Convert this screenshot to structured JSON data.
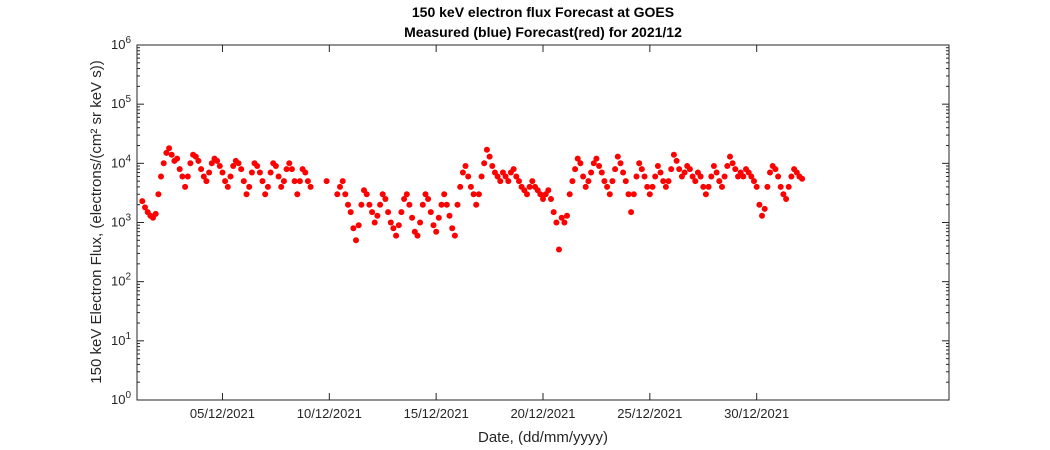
{
  "chart_data": {
    "type": "scatter",
    "title": "150 keV electron flux Forecast at GOES",
    "subtitle": "Measured (blue) Forecast(red) for 2021/12",
    "xlabel": "Date, (dd/mm/yyyy)",
    "ylabel": "150 keV Electron Flux, (electrons/(cm² sr keV s))",
    "yscale": "log",
    "xlim": [
      "2021-12-01",
      "2022-01-08"
    ],
    "ylim": [
      1,
      1000000
    ],
    "x_ticks": [
      "05/12/2021",
      "10/12/2021",
      "15/12/2021",
      "20/12/2021",
      "25/12/2021",
      "30/12/2021"
    ],
    "y_ticks": [
      {
        "base": "10",
        "exp": "0"
      },
      {
        "base": "10",
        "exp": "1"
      },
      {
        "base": "10",
        "exp": "2"
      },
      {
        "base": "10",
        "exp": "3"
      },
      {
        "base": "10",
        "exp": "4"
      },
      {
        "base": "10",
        "exp": "5"
      },
      {
        "base": "10",
        "exp": "6"
      }
    ],
    "grid": false,
    "series": [
      {
        "color": "#ff0000",
        "marker": "filled-circle",
        "points": [
          [
            "2021-12-01 06:00",
            2300
          ],
          [
            "2021-12-01 09:00",
            1800
          ],
          [
            "2021-12-01 12:00",
            1500
          ],
          [
            "2021-12-01 15:00",
            1300
          ],
          [
            "2021-12-01 18:00",
            1200
          ],
          [
            "2021-12-01 21:00",
            1400
          ],
          [
            "2021-12-02 00:00",
            3000
          ],
          [
            "2021-12-02 03:00",
            6000
          ],
          [
            "2021-12-02 06:00",
            10000
          ],
          [
            "2021-12-02 09:00",
            15000
          ],
          [
            "2021-12-02 12:00",
            18000
          ],
          [
            "2021-12-02 15:00",
            14000
          ],
          [
            "2021-12-02 18:00",
            11000
          ],
          [
            "2021-12-02 21:00",
            12000
          ],
          [
            "2021-12-03 00:00",
            8000
          ],
          [
            "2021-12-03 03:00",
            6000
          ],
          [
            "2021-12-03 06:00",
            4000
          ],
          [
            "2021-12-03 09:00",
            6000
          ],
          [
            "2021-12-03 12:00",
            10000
          ],
          [
            "2021-12-03 15:00",
            14000
          ],
          [
            "2021-12-03 18:00",
            13000
          ],
          [
            "2021-12-03 21:00",
            11000
          ],
          [
            "2021-12-04 00:00",
            8000
          ],
          [
            "2021-12-04 03:00",
            6000
          ],
          [
            "2021-12-04 06:00",
            5000
          ],
          [
            "2021-12-04 09:00",
            7000
          ],
          [
            "2021-12-04 12:00",
            10000
          ],
          [
            "2021-12-04 15:00",
            12000
          ],
          [
            "2021-12-04 18:00",
            11000
          ],
          [
            "2021-12-04 21:00",
            9000
          ],
          [
            "2021-12-05 00:00",
            7000
          ],
          [
            "2021-12-05 03:00",
            5000
          ],
          [
            "2021-12-05 06:00",
            4000
          ],
          [
            "2021-12-05 09:00",
            6000
          ],
          [
            "2021-12-05 12:00",
            9000
          ],
          [
            "2021-12-05 15:00",
            11000
          ],
          [
            "2021-12-05 18:00",
            10000
          ],
          [
            "2021-12-05 21:00",
            8000
          ],
          [
            "2021-12-06 00:00",
            5000
          ],
          [
            "2021-12-06 03:00",
            3000
          ],
          [
            "2021-12-06 06:00",
            4000
          ],
          [
            "2021-12-06 09:00",
            7000
          ],
          [
            "2021-12-06 12:00",
            10000
          ],
          [
            "2021-12-06 15:00",
            9000
          ],
          [
            "2021-12-06 18:00",
            7000
          ],
          [
            "2021-12-06 21:00",
            5000
          ],
          [
            "2021-12-07 00:00",
            3000
          ],
          [
            "2021-12-07 03:00",
            4000
          ],
          [
            "2021-12-07 06:00",
            7000
          ],
          [
            "2021-12-07 09:00",
            10000
          ],
          [
            "2021-12-07 12:00",
            9000
          ],
          [
            "2021-12-07 15:00",
            6000
          ],
          [
            "2021-12-07 18:00",
            4000
          ],
          [
            "2021-12-07 21:00",
            5000
          ],
          [
            "2021-12-08 00:00",
            8000
          ],
          [
            "2021-12-08 03:00",
            10000
          ],
          [
            "2021-12-08 06:00",
            8000
          ],
          [
            "2021-12-08 09:00",
            5000
          ],
          [
            "2021-12-08 12:00",
            3000
          ],
          [
            "2021-12-08 15:00",
            5000
          ],
          [
            "2021-12-08 18:00",
            8000
          ],
          [
            "2021-12-08 21:00",
            7000
          ],
          [
            "2021-12-09 00:00",
            5000
          ],
          [
            "2021-12-09 03:00",
            4000
          ],
          [
            "2021-12-09 21:00",
            5000
          ],
          [
            "2021-12-10 09:00",
            3000
          ],
          [
            "2021-12-10 12:00",
            4000
          ],
          [
            "2021-12-10 15:00",
            5000
          ],
          [
            "2021-12-10 18:00",
            3000
          ],
          [
            "2021-12-10 21:00",
            2000
          ],
          [
            "2021-12-11 00:00",
            1500
          ],
          [
            "2021-12-11 03:00",
            800
          ],
          [
            "2021-12-11 06:00",
            500
          ],
          [
            "2021-12-11 09:00",
            900
          ],
          [
            "2021-12-11 12:00",
            2000
          ],
          [
            "2021-12-11 15:00",
            3500
          ],
          [
            "2021-12-11 18:00",
            3000
          ],
          [
            "2021-12-11 21:00",
            2000
          ],
          [
            "2021-12-12 00:00",
            1500
          ],
          [
            "2021-12-12 03:00",
            1000
          ],
          [
            "2021-12-12 06:00",
            1300
          ],
          [
            "2021-12-12 09:00",
            2000
          ],
          [
            "2021-12-12 12:00",
            3000
          ],
          [
            "2021-12-12 15:00",
            2500
          ],
          [
            "2021-12-12 18:00",
            1500
          ],
          [
            "2021-12-12 21:00",
            1000
          ],
          [
            "2021-12-13 00:00",
            800
          ],
          [
            "2021-12-13 03:00",
            600
          ],
          [
            "2021-12-13 06:00",
            900
          ],
          [
            "2021-12-13 09:00",
            1500
          ],
          [
            "2021-12-13 12:00",
            2500
          ],
          [
            "2021-12-13 15:00",
            3000
          ],
          [
            "2021-12-13 18:00",
            2000
          ],
          [
            "2021-12-13 21:00",
            1200
          ],
          [
            "2021-12-14 00:00",
            700
          ],
          [
            "2021-12-14 03:00",
            600
          ],
          [
            "2021-12-14 06:00",
            1000
          ],
          [
            "2021-12-14 09:00",
            2000
          ],
          [
            "2021-12-14 12:00",
            3000
          ],
          [
            "2021-12-14 15:00",
            2500
          ],
          [
            "2021-12-14 18:00",
            1500
          ],
          [
            "2021-12-14 21:00",
            900
          ],
          [
            "2021-12-15 00:00",
            700
          ],
          [
            "2021-12-15 03:00",
            1200
          ],
          [
            "2021-12-15 06:00",
            2000
          ],
          [
            "2021-12-15 09:00",
            3000
          ],
          [
            "2021-12-15 12:00",
            2000
          ],
          [
            "2021-12-15 15:00",
            1300
          ],
          [
            "2021-12-15 18:00",
            800
          ],
          [
            "2021-12-15 21:00",
            600
          ],
          [
            "2021-12-16 00:00",
            2000
          ],
          [
            "2021-12-16 03:00",
            4000
          ],
          [
            "2021-12-16 06:00",
            7000
          ],
          [
            "2021-12-16 09:00",
            9000
          ],
          [
            "2021-12-16 12:00",
            6000
          ],
          [
            "2021-12-16 15:00",
            4000
          ],
          [
            "2021-12-16 18:00",
            3000
          ],
          [
            "2021-12-16 21:00",
            2000
          ],
          [
            "2021-12-17 00:00",
            3000
          ],
          [
            "2021-12-17 03:00",
            6000
          ],
          [
            "2021-12-17 06:00",
            10000
          ],
          [
            "2021-12-17 09:00",
            17000
          ],
          [
            "2021-12-17 12:00",
            13000
          ],
          [
            "2021-12-17 15:00",
            9000
          ],
          [
            "2021-12-17 18:00",
            7000
          ],
          [
            "2021-12-17 21:00",
            6000
          ],
          [
            "2021-12-18 00:00",
            5000
          ],
          [
            "2021-12-18 03:00",
            7000
          ],
          [
            "2021-12-18 06:00",
            6000
          ],
          [
            "2021-12-18 09:00",
            5000
          ],
          [
            "2021-12-18 12:00",
            7000
          ],
          [
            "2021-12-18 15:00",
            8000
          ],
          [
            "2021-12-18 18:00",
            6000
          ],
          [
            "2021-12-18 21:00",
            5000
          ],
          [
            "2021-12-19 00:00",
            4000
          ],
          [
            "2021-12-19 03:00",
            3500
          ],
          [
            "2021-12-19 06:00",
            3000
          ],
          [
            "2021-12-19 09:00",
            4000
          ],
          [
            "2021-12-19 12:00",
            5000
          ],
          [
            "2021-12-19 15:00",
            4000
          ],
          [
            "2021-12-19 18:00",
            3500
          ],
          [
            "2021-12-19 21:00",
            3000
          ],
          [
            "2021-12-20 00:00",
            2500
          ],
          [
            "2021-12-20 03:00",
            3000
          ],
          [
            "2021-12-20 06:00",
            3500
          ],
          [
            "2021-12-20 09:00",
            2500
          ],
          [
            "2021-12-20 12:00",
            1500
          ],
          [
            "2021-12-20 15:00",
            1000
          ],
          [
            "2021-12-20 18:00",
            350
          ],
          [
            "2021-12-20 21:00",
            1200
          ],
          [
            "2021-12-21 00:00",
            1000
          ],
          [
            "2021-12-21 03:00",
            1300
          ],
          [
            "2021-12-21 06:00",
            3000
          ],
          [
            "2021-12-21 09:00",
            5000
          ],
          [
            "2021-12-21 12:00",
            8000
          ],
          [
            "2021-12-21 15:00",
            12000
          ],
          [
            "2021-12-21 18:00",
            10000
          ],
          [
            "2021-12-21 21:00",
            6000
          ],
          [
            "2021-12-22 00:00",
            4000
          ],
          [
            "2021-12-22 03:00",
            5000
          ],
          [
            "2021-12-22 06:00",
            7000
          ],
          [
            "2021-12-22 09:00",
            10000
          ],
          [
            "2021-12-22 12:00",
            12000
          ],
          [
            "2021-12-22 15:00",
            9000
          ],
          [
            "2021-12-22 18:00",
            7000
          ],
          [
            "2021-12-22 21:00",
            5000
          ],
          [
            "2021-12-23 00:00",
            4000
          ],
          [
            "2021-12-23 03:00",
            3000
          ],
          [
            "2021-12-23 06:00",
            5000
          ],
          [
            "2021-12-23 09:00",
            8000
          ],
          [
            "2021-12-23 12:00",
            13000
          ],
          [
            "2021-12-23 15:00",
            10000
          ],
          [
            "2021-12-23 18:00",
            7000
          ],
          [
            "2021-12-23 21:00",
            5000
          ],
          [
            "2021-12-24 00:00",
            3000
          ],
          [
            "2021-12-24 03:00",
            1500
          ],
          [
            "2021-12-24 06:00",
            3000
          ],
          [
            "2021-12-24 09:00",
            6000
          ],
          [
            "2021-12-24 12:00",
            10000
          ],
          [
            "2021-12-24 15:00",
            8000
          ],
          [
            "2021-12-24 18:00",
            6000
          ],
          [
            "2021-12-24 21:00",
            4000
          ],
          [
            "2021-12-25 00:00",
            3000
          ],
          [
            "2021-12-25 03:00",
            4000
          ],
          [
            "2021-12-25 06:00",
            6000
          ],
          [
            "2021-12-25 09:00",
            9000
          ],
          [
            "2021-12-25 12:00",
            7000
          ],
          [
            "2021-12-25 15:00",
            5000
          ],
          [
            "2021-12-25 18:00",
            4000
          ],
          [
            "2021-12-25 21:00",
            5000
          ],
          [
            "2021-12-26 00:00",
            8000
          ],
          [
            "2021-12-26 03:00",
            14000
          ],
          [
            "2021-12-26 06:00",
            11000
          ],
          [
            "2021-12-26 09:00",
            8000
          ],
          [
            "2021-12-26 12:00",
            6000
          ],
          [
            "2021-12-26 15:00",
            7000
          ],
          [
            "2021-12-26 18:00",
            9000
          ],
          [
            "2021-12-26 21:00",
            8000
          ],
          [
            "2021-12-27 00:00",
            6000
          ],
          [
            "2021-12-27 03:00",
            5000
          ],
          [
            "2021-12-27 06:00",
            7000
          ],
          [
            "2021-12-27 09:00",
            6000
          ],
          [
            "2021-12-27 12:00",
            4000
          ],
          [
            "2021-12-27 15:00",
            3000
          ],
          [
            "2021-12-27 18:00",
            4000
          ],
          [
            "2021-12-27 21:00",
            6000
          ],
          [
            "2021-12-28 00:00",
            9000
          ],
          [
            "2021-12-28 03:00",
            7000
          ],
          [
            "2021-12-28 06:00",
            5000
          ],
          [
            "2021-12-28 09:00",
            4000
          ],
          [
            "2021-12-28 12:00",
            6000
          ],
          [
            "2021-12-28 15:00",
            9000
          ],
          [
            "2021-12-28 18:00",
            13000
          ],
          [
            "2021-12-28 21:00",
            10000
          ],
          [
            "2021-12-29 00:00",
            8000
          ],
          [
            "2021-12-29 03:00",
            6000
          ],
          [
            "2021-12-29 06:00",
            7000
          ],
          [
            "2021-12-29 09:00",
            6000
          ],
          [
            "2021-12-29 12:00",
            8000
          ],
          [
            "2021-12-29 15:00",
            7000
          ],
          [
            "2021-12-29 18:00",
            6000
          ],
          [
            "2021-12-29 21:00",
            5000
          ],
          [
            "2021-12-30 00:00",
            4000
          ],
          [
            "2021-12-30 03:00",
            2000
          ],
          [
            "2021-12-30 06:00",
            1300
          ],
          [
            "2021-12-30 09:00",
            1700
          ],
          [
            "2021-12-30 12:00",
            4000
          ],
          [
            "2021-12-30 15:00",
            7000
          ],
          [
            "2021-12-30 18:00",
            9000
          ],
          [
            "2021-12-30 21:00",
            8000
          ],
          [
            "2021-12-31 00:00",
            6000
          ],
          [
            "2021-12-31 03:00",
            4000
          ],
          [
            "2021-12-31 06:00",
            3000
          ],
          [
            "2021-12-31 09:00",
            2500
          ],
          [
            "2021-12-31 12:00",
            4000
          ],
          [
            "2021-12-31 15:00",
            6000
          ],
          [
            "2021-12-31 18:00",
            8000
          ],
          [
            "2021-12-31 21:00",
            7000
          ],
          [
            "2022-01-01 00:00",
            6000
          ],
          [
            "2022-01-01 03:00",
            5500
          ]
        ]
      }
    ]
  }
}
